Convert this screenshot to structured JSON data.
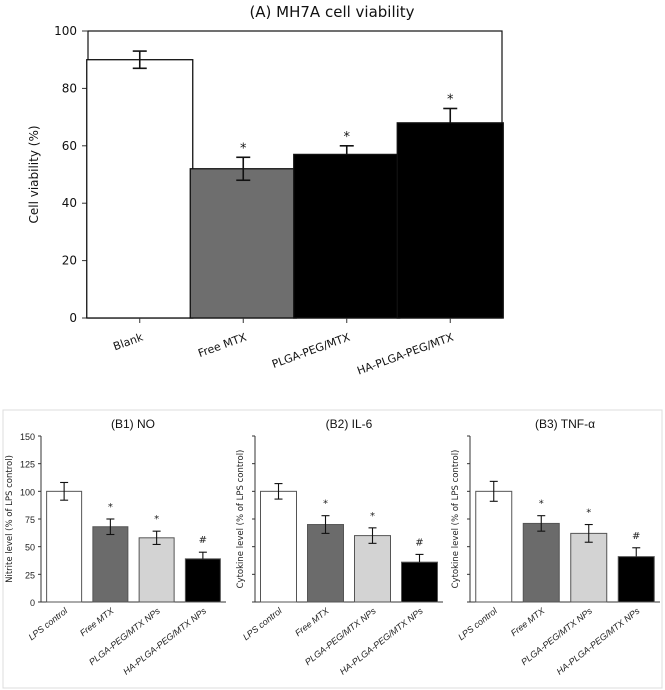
{
  "chart_data": [
    {
      "id": "A",
      "type": "bar",
      "title": "(A)  MH7A cell viability",
      "xlabel": "",
      "ylabel": "Cell viability (%)",
      "ylim": [
        0,
        100
      ],
      "yticks": [
        0,
        20,
        40,
        60,
        80,
        100
      ],
      "grid": false,
      "categories": [
        "Blank",
        "Free MTX",
        "PLGA-PEG/MTX",
        "HA-PLGA-PEG/MTX"
      ],
      "values": [
        90,
        52,
        57,
        68
      ],
      "errors": [
        3,
        4,
        3,
        5
      ],
      "error_style": [
        "both",
        "both",
        "up",
        "up"
      ],
      "annotations": [
        "",
        "*",
        "*",
        "*"
      ],
      "bar_colors": [
        "#ffffff",
        "#6e6e6e",
        "#000000",
        "#000000"
      ]
    },
    {
      "id": "B1",
      "type": "bar",
      "title": "(B1) NO",
      "xlabel": "",
      "ylabel": "Nitrite level (% of LPS control)",
      "ylim": [
        0,
        150
      ],
      "yticks": [
        0,
        25,
        50,
        75,
        100,
        125,
        150
      ],
      "show_tick_labels": true,
      "grid": false,
      "categories": [
        "LPS control",
        "Free MTX",
        "PLGA-PEG/MTX NPs",
        "HA-PLGA-PEG/MTX NPs"
      ],
      "values": [
        100,
        68,
        58,
        39
      ],
      "errors": [
        8,
        7,
        6,
        6
      ],
      "error_style": [
        "both",
        "both",
        "both",
        "up"
      ],
      "annotations": [
        "",
        "*",
        "*",
        "#"
      ],
      "bar_colors": [
        "#ffffff",
        "#6b6b6b",
        "#d3d3d3",
        "#000000"
      ]
    },
    {
      "id": "B2",
      "type": "bar",
      "title": "(B2) IL-6",
      "xlabel": "",
      "ylabel": "Cytokine level (% of LPS control)",
      "ylim": [
        0,
        150
      ],
      "yticks": [
        0,
        25,
        50,
        75,
        100,
        125,
        150
      ],
      "show_tick_labels": false,
      "grid": false,
      "categories": [
        "LPS control",
        "Free MTX",
        "PLGA-PEG/MTX NPs",
        "HA-PLGA-PEG/MTX NPs"
      ],
      "values": [
        100,
        70,
        60,
        36
      ],
      "errors": [
        7,
        8,
        7,
        7
      ],
      "error_style": [
        "both",
        "both",
        "both",
        "up"
      ],
      "annotations": [
        "",
        "*",
        "*",
        "#"
      ],
      "bar_colors": [
        "#ffffff",
        "#6b6b6b",
        "#d3d3d3",
        "#000000"
      ]
    },
    {
      "id": "B3",
      "type": "bar",
      "title": "(B3) TNF-α",
      "xlabel": "",
      "ylabel": "Cytokine level (% of LPS control)",
      "ylim": [
        0,
        150
      ],
      "yticks": [
        0,
        25,
        50,
        75,
        100,
        125,
        150
      ],
      "show_tick_labels": false,
      "grid": false,
      "categories": [
        "LPS control",
        "Free MTX",
        "PLGA-PEG/MTX NPs",
        "HA-PLGA-PEG/MTX NPs"
      ],
      "values": [
        100,
        71,
        62,
        41
      ],
      "errors": [
        9,
        7,
        8,
        8
      ],
      "error_style": [
        "both",
        "both",
        "both",
        "up"
      ],
      "annotations": [
        "",
        "*",
        "*",
        "#"
      ],
      "bar_colors": [
        "#ffffff",
        "#6b6b6b",
        "#d3d3d3",
        "#000000"
      ]
    }
  ]
}
